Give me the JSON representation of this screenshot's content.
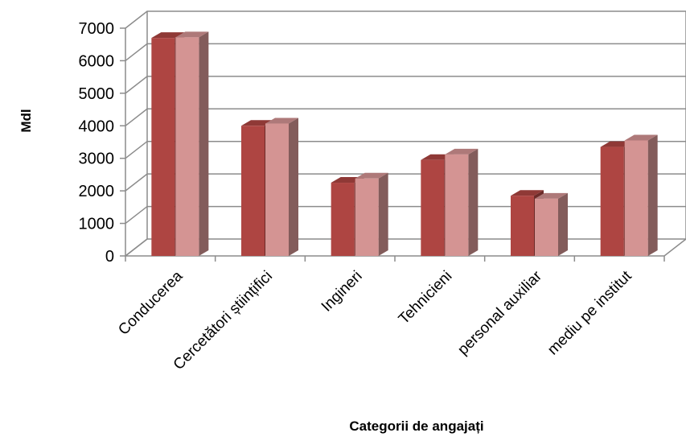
{
  "chart_data": {
    "type": "bar",
    "title": "",
    "xlabel": "Categorii de angajați",
    "ylabel": "Mdl",
    "categories": [
      "Conducerea",
      "Cercetători științifici",
      "Ingineri",
      "Tehnicieni",
      "personal auxiliar",
      "mediu pe institut"
    ],
    "series": [
      {
        "color": "#ae4542",
        "values": [
          6700,
          4000,
          2250,
          2950,
          1850,
          3350
        ]
      },
      {
        "color": "#d49493",
        "values": [
          6720,
          4070,
          2380,
          3120,
          1760,
          3550
        ]
      }
    ],
    "ylim": [
      0,
      7000
    ],
    "yticks": [
      0,
      1000,
      2000,
      3000,
      4000,
      5000,
      6000,
      7000
    ],
    "grid": true,
    "legend": "none",
    "style": "3d-clustered-column"
  }
}
